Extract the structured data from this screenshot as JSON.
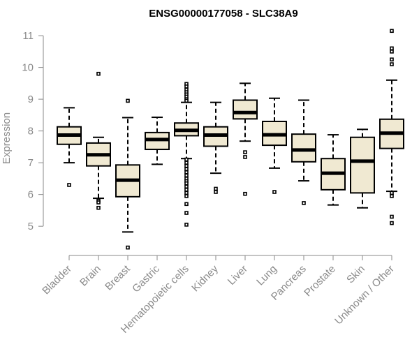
{
  "chart_data": {
    "type": "boxplot",
    "title": "ENSG00000177058 - SLC38A9",
    "xlabel": "",
    "ylabel": "Expression",
    "ylim": [
      4.3,
      11.2
    ],
    "yticks": [
      5,
      6,
      7,
      8,
      9,
      10,
      11
    ],
    "categories": [
      "Bladder",
      "Brain",
      "Breast",
      "Gastric",
      "Hematopoietic cells",
      "Kidney",
      "Liver",
      "Lung",
      "Pancreas",
      "Prostate",
      "Skin",
      "Unknown / Other"
    ],
    "box_color": "#f0e9d2",
    "boxes": [
      {
        "name": "Bladder",
        "min": 7.0,
        "q1": 7.58,
        "median": 7.87,
        "q3": 8.13,
        "max": 8.73,
        "outliers": [
          6.3
        ]
      },
      {
        "name": "Brain",
        "min": 5.88,
        "q1": 6.9,
        "median": 7.25,
        "q3": 7.62,
        "max": 7.8,
        "outliers": [
          9.8,
          5.8,
          5.75,
          5.58
        ]
      },
      {
        "name": "Breast",
        "min": 4.82,
        "q1": 5.93,
        "median": 6.45,
        "q3": 6.93,
        "max": 8.42,
        "outliers": [
          8.95,
          4.33
        ]
      },
      {
        "name": "Gastric",
        "min": 6.95,
        "q1": 7.42,
        "median": 7.73,
        "q3": 7.95,
        "max": 8.43,
        "outliers": []
      },
      {
        "name": "Hematopoietic cells",
        "min": 7.13,
        "q1": 7.85,
        "median": 8.02,
        "q3": 8.25,
        "max": 8.9,
        "outliers": [
          9.48,
          9.4,
          9.3,
          9.22,
          9.15,
          9.08,
          9.0,
          8.95,
          7.1,
          7.0,
          6.9,
          6.8,
          6.7,
          6.6,
          6.5,
          6.42,
          6.35,
          6.25,
          6.15,
          6.05,
          5.95,
          5.7,
          5.42,
          5.05
        ]
      },
      {
        "name": "Kidney",
        "min": 6.67,
        "q1": 7.52,
        "median": 7.87,
        "q3": 8.13,
        "max": 8.9,
        "outliers": [
          6.18,
          6.08
        ]
      },
      {
        "name": "Liver",
        "min": 7.68,
        "q1": 8.38,
        "median": 8.58,
        "q3": 8.97,
        "max": 9.5,
        "outliers": [
          7.33,
          7.18,
          6.02
        ]
      },
      {
        "name": "Lung",
        "min": 6.83,
        "q1": 7.55,
        "median": 7.88,
        "q3": 8.3,
        "max": 9.03,
        "outliers": [
          6.08
        ]
      },
      {
        "name": "Pancreas",
        "min": 6.43,
        "q1": 7.03,
        "median": 7.4,
        "q3": 7.9,
        "max": 8.97,
        "outliers": [
          5.73
        ]
      },
      {
        "name": "Prostate",
        "min": 5.67,
        "q1": 6.15,
        "median": 6.67,
        "q3": 7.13,
        "max": 7.88,
        "outliers": []
      },
      {
        "name": "Skin",
        "min": 5.58,
        "q1": 6.05,
        "median": 7.05,
        "q3": 7.8,
        "max": 8.05,
        "outliers": []
      },
      {
        "name": "Unknown / Other",
        "min": 6.1,
        "q1": 7.45,
        "median": 7.93,
        "q3": 8.37,
        "max": 9.6,
        "outliers": [
          11.15,
          10.6,
          10.5,
          10.25,
          10.1,
          6.05,
          5.95,
          5.3,
          5.1
        ]
      }
    ]
  }
}
